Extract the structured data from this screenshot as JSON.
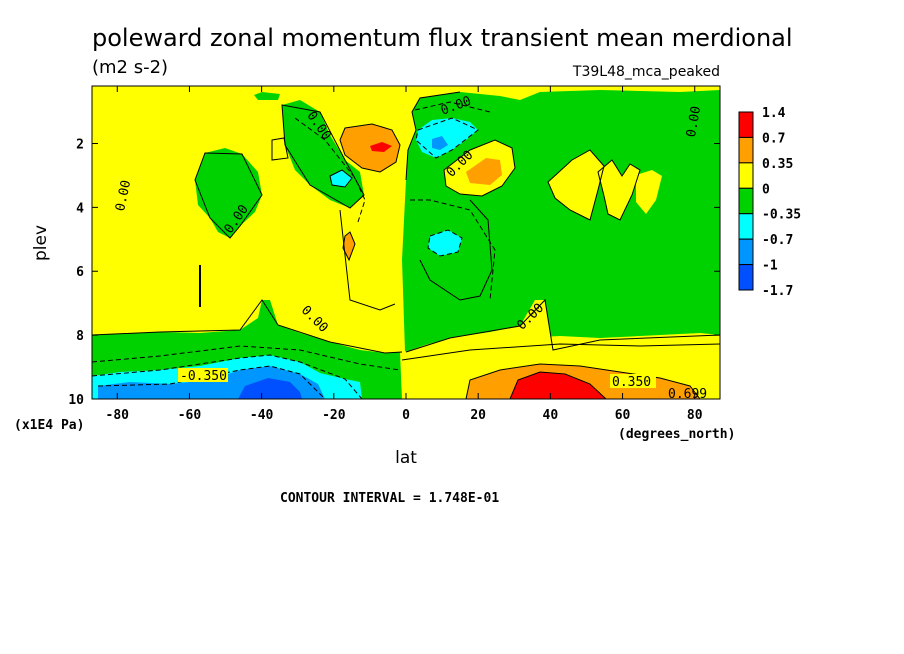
{
  "chart_data": {
    "type": "heatmap",
    "title": "poleward zonal momentum flux transient mean merdional",
    "units": "(m2 s-2)",
    "dataset": "T39L48_mca_peaked",
    "xlabel": "lat",
    "x_units": "(degrees_north)",
    "ylabel": "plev",
    "y_units": "(x1E4 Pa)",
    "xlim": [
      -87,
      87
    ],
    "ylim": [
      10,
      0.2
    ],
    "x_ticks": [
      "-80",
      "-60",
      "-40",
      "-20",
      "0",
      "20",
      "40",
      "60",
      "80"
    ],
    "y_ticks": [
      "2",
      "4",
      "6",
      "8",
      "10"
    ],
    "contour_interval": "CONTOUR INTERVAL = 1.748E-01",
    "contour_labels": [
      "0.00",
      "0.00",
      "0.00",
      "0.00",
      "0.00",
      "0.00",
      "0.00",
      "0.00",
      "-0.350",
      "0.350",
      "0.699"
    ],
    "colorbar": {
      "levels": [
        "1.4",
        "0.7",
        "0.35",
        "0",
        "-0.35",
        "-0.7",
        "-1",
        "-1.7"
      ],
      "colors": [
        "#ff0000",
        "#ff9f00",
        "#ffff00",
        "#00d200",
        "#00ffff",
        "#0096ff",
        "#0050ff"
      ]
    },
    "regions": [
      {
        "name": "positive-background",
        "range": "0 to 0.35",
        "color": "#ffff00"
      },
      {
        "name": "sh-subtropics-negative-pocket",
        "lat": [
          -62,
          -46
        ],
        "plev": [
          2,
          5
        ],
        "range": "-0.35 to 0",
        "color": "#00d200"
      },
      {
        "name": "sh-near-surface-negative",
        "lat": [
          -87,
          -2
        ],
        "plev": [
          7.8,
          10
        ],
        "range": "-1 to 0",
        "color": "#00d200"
      },
      {
        "name": "sh-surface-jet-minimum",
        "lat": [
          -55,
          -35
        ],
        "plev": [
          9.5,
          10
        ],
        "range": "-1 to -0.7",
        "color": "#0050ff"
      },
      {
        "name": "sh-upper-positive-peak",
        "lat": [
          -10,
          -5
        ],
        "plev": [
          1.8,
          2.2
        ],
        "range": "> 0.7",
        "color": "#ff0000"
      },
      {
        "name": "nh-upper-negative",
        "lat": [
          2,
          20
        ],
        "plev": [
          1,
          2.5
        ],
        "range": "-0.7 to -0.35",
        "color": "#00ffff"
      },
      {
        "name": "nh-midlevel-negative-broad",
        "lat": [
          0,
          87
        ],
        "plev": [
          0.2,
          8.5
        ],
        "range": "-0.35 to 0",
        "color": "#00d200"
      },
      {
        "name": "nh-subtropical-jet-surface",
        "lat": [
          28,
          68
        ],
        "plev": [
          9.3,
          10
        ],
        "range": "0.7 to 1.4",
        "color": "#ff0000"
      }
    ]
  }
}
